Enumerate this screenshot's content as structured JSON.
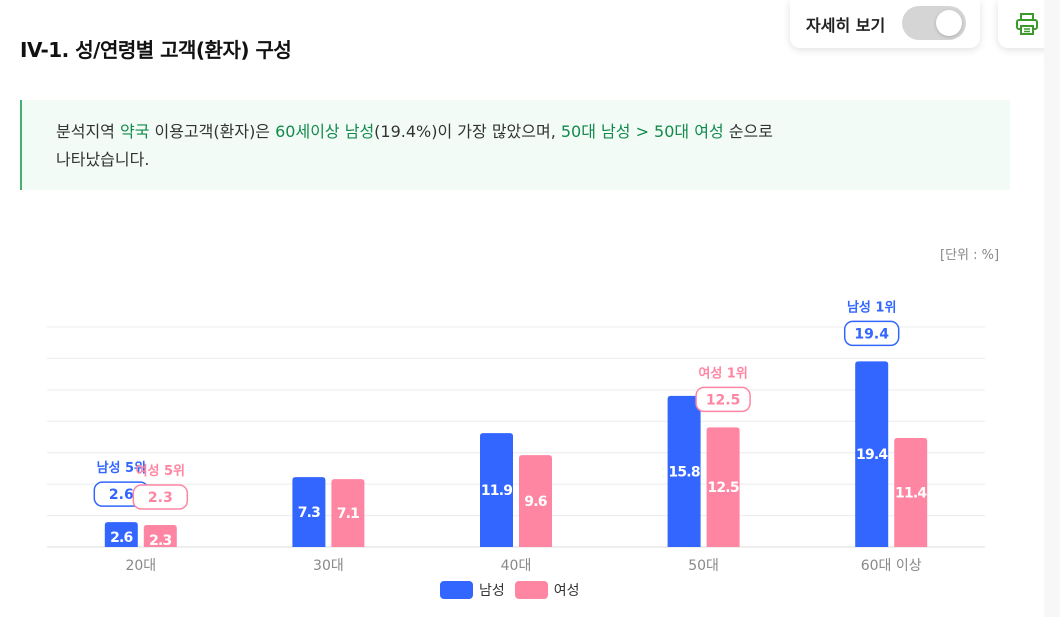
{
  "page": {
    "title": "IV-1. 성/연령별 고객(환자) 구성",
    "toggle_label": "자세히 보기",
    "summary": {
      "p1": "분석지역 ",
      "p2": "약국",
      "p3": " 이용고객(환자)은 ",
      "p4": "60세이상 남성",
      "p5": "(19.4%)이 가장 많았으며, ",
      "p6": "50대 남성 > 50대 여성",
      "p7": " 순으로",
      "p8": "나타났습니다."
    },
    "unit": "[단위 : %]",
    "icons": {
      "print": "printer-icon"
    },
    "colors": {
      "male": "#3266ff",
      "female": "#ff86a3",
      "accent": "#138a4b"
    }
  },
  "chart_data": {
    "type": "bar",
    "categories": [
      "20대",
      "30대",
      "40대",
      "50대",
      "60대 이상"
    ],
    "series": [
      {
        "name": "남성",
        "values": [
          2.6,
          7.3,
          11.9,
          15.8,
          19.4
        ]
      },
      {
        "name": "여성",
        "values": [
          2.3,
          7.1,
          9.6,
          12.5,
          11.4
        ]
      }
    ],
    "ylim": [
      0,
      23
    ],
    "grid": true,
    "legend": "bottom-center",
    "annotations": [
      {
        "series": "남성",
        "category": "20대",
        "label": "남성 5위",
        "value": "2.6"
      },
      {
        "series": "여성",
        "category": "20대",
        "label": "여성 5위",
        "value": "2.3"
      },
      {
        "series": "여성",
        "category": "50대",
        "label": "여성 1위",
        "value": "12.5"
      },
      {
        "series": "남성",
        "category": "60대 이상",
        "label": "남성 1위",
        "value": "19.4"
      }
    ]
  }
}
